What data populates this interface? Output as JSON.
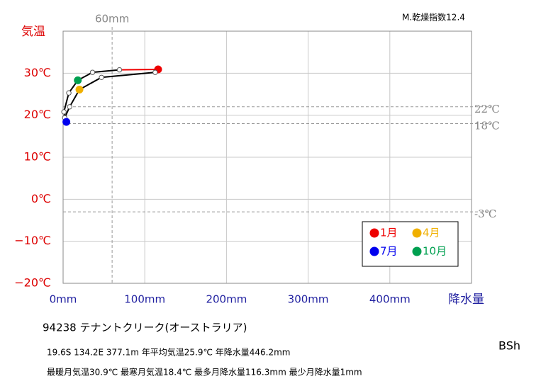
{
  "chart_data": {
    "type": "climograph",
    "corner_note": "M.乾燥指数12.4",
    "y_label": "気温",
    "x_label": "降水量",
    "x": [
      116.3,
      112.7,
      47,
      20,
      8,
      2,
      4,
      1,
      7,
      18,
      36,
      69
    ],
    "y": [
      30.9,
      30.2,
      29.0,
      26.1,
      22.0,
      19.4,
      18.4,
      20.8,
      25.3,
      28.3,
      30.2,
      30.8
    ],
    "line_color": "#000000",
    "highlights": [
      {
        "name": "1月",
        "color": "#ee0000",
        "index": 0
      },
      {
        "name": "4月",
        "color": "#f0b000",
        "index": 3
      },
      {
        "name": "7月",
        "color": "#0000ee",
        "index": 6
      },
      {
        "name": "10月",
        "color": "#00a050",
        "index": 9
      }
    ],
    "xlim": [
      0,
      500
    ],
    "ylim": [
      -20,
      40
    ],
    "xticks": [
      {
        "value": 0,
        "label": "0mm"
      },
      {
        "value": 100,
        "label": "100mm"
      },
      {
        "value": 200,
        "label": "200mm"
      },
      {
        "value": 300,
        "label": "300mm"
      },
      {
        "value": 400,
        "label": "400mm"
      }
    ],
    "yticks": [
      {
        "value": -20,
        "label": "−20℃"
      },
      {
        "value": -10,
        "label": "−10℃"
      },
      {
        "value": 0,
        "label": "0℃"
      },
      {
        "value": 10,
        "label": "10℃"
      },
      {
        "value": 20,
        "label": "20℃"
      },
      {
        "value": 30,
        "label": "30℃"
      }
    ],
    "y_reference_lines": [
      {
        "value": 22,
        "label": "22℃"
      },
      {
        "value": 18,
        "label": "18℃"
      },
      {
        "value": -3,
        "label": "-3℃"
      }
    ],
    "x_reference_lines": [
      {
        "value": 60,
        "label": "60mm"
      }
    ],
    "grid": true,
    "station": "94238  テナントクリーク(オーストラリア)",
    "info_line_1": "19.6S  134.2E 377.1m  年平均気温25.9℃ 年降水量446.2mm",
    "info_line_2": "最暖月気温30.9℃ 最寒月気温18.4℃ 最多月降水量116.3mm 最少月降水量1mm",
    "climate_code": "BSh"
  }
}
